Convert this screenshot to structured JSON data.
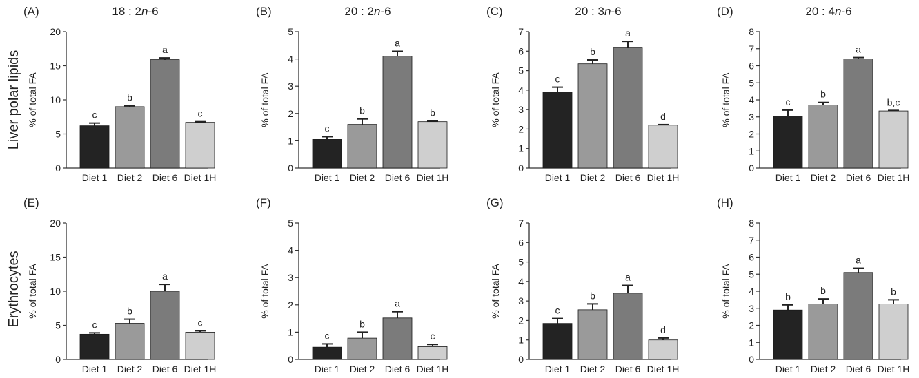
{
  "row_labels": [
    "Liver polar lipids",
    "Erythrocytes"
  ],
  "bar_colors": [
    "#232323",
    "#9a9a9a",
    "#7b7b7b",
    "#cfcfcf"
  ],
  "chart_data": [
    {
      "id": "A",
      "letter": "(A)",
      "title": "18 : 2n-6",
      "title_parts": [
        "18 : 2",
        {
          "i": "n"
        },
        "-6"
      ],
      "type": "bar",
      "ylabel": "% of total FA",
      "categories": [
        "Diet 1",
        "Diet 2",
        "Diet 6",
        "Diet 1H"
      ],
      "values": [
        6.2,
        9.0,
        15.9,
        6.7
      ],
      "errors": [
        0.4,
        0.15,
        0.25,
        0.1
      ],
      "sig": [
        "c",
        "b",
        "a",
        "c"
      ],
      "ylim": [
        0,
        20
      ],
      "ticks": [
        0,
        5,
        10,
        15,
        20
      ]
    },
    {
      "id": "B",
      "letter": "(B)",
      "title": "20 : 2n-6",
      "title_parts": [
        "20 : 2",
        {
          "i": "n"
        },
        "-6"
      ],
      "type": "bar",
      "ylabel": "% of total FA",
      "categories": [
        "Diet 1",
        "Diet 2",
        "Diet 6",
        "Diet 1H"
      ],
      "values": [
        1.05,
        1.6,
        4.1,
        1.7
      ],
      "errors": [
        0.1,
        0.2,
        0.18,
        0.03
      ],
      "sig": [
        "c",
        "b",
        "a",
        "b"
      ],
      "ylim": [
        0,
        5
      ],
      "ticks": [
        0,
        1,
        2,
        3,
        4,
        5
      ]
    },
    {
      "id": "C",
      "letter": "(C)",
      "title": "20 : 3n-6",
      "title_parts": [
        "20 : 3",
        {
          "i": "n"
        },
        "-6"
      ],
      "type": "bar",
      "ylabel": "% of total FA",
      "categories": [
        "Diet 1",
        "Diet 2",
        "Diet 6",
        "Diet 1H"
      ],
      "values": [
        3.9,
        5.35,
        6.2,
        2.2
      ],
      "errors": [
        0.25,
        0.2,
        0.3,
        0.03
      ],
      "sig": [
        "c",
        "b",
        "a",
        "d"
      ],
      "ylim": [
        0,
        7
      ],
      "ticks": [
        0,
        1,
        2,
        3,
        4,
        5,
        6,
        7
      ]
    },
    {
      "id": "D",
      "letter": "(D)",
      "title": "20 : 4n-6",
      "title_parts": [
        "20 : 4",
        {
          "i": "n"
        },
        "-6"
      ],
      "type": "bar",
      "ylabel": "% of total FA",
      "categories": [
        "Diet 1",
        "Diet 2",
        "Diet 6",
        "Diet 1H"
      ],
      "values": [
        3.05,
        3.7,
        6.4,
        3.35
      ],
      "errors": [
        0.35,
        0.15,
        0.08,
        0.03
      ],
      "sig": [
        "c",
        "b",
        "a",
        "b,c"
      ],
      "ylim": [
        0,
        8
      ],
      "ticks": [
        0,
        1,
        2,
        3,
        4,
        5,
        6,
        7,
        8
      ]
    },
    {
      "id": "E",
      "letter": "(E)",
      "title": "",
      "title_parts": [],
      "type": "bar",
      "ylabel": "% of total FA",
      "categories": [
        "Diet 1",
        "Diet 2",
        "Diet 6",
        "Diet 1H"
      ],
      "values": [
        3.7,
        5.3,
        10.0,
        4.0
      ],
      "errors": [
        0.2,
        0.6,
        1.0,
        0.2
      ],
      "sig": [
        "c",
        "b",
        "a",
        "c"
      ],
      "ylim": [
        0,
        20
      ],
      "ticks": [
        0,
        5,
        10,
        15,
        20
      ]
    },
    {
      "id": "F",
      "letter": "(F)",
      "title": "",
      "title_parts": [],
      "type": "bar",
      "ylabel": "% of total FA",
      "categories": [
        "Diet 1",
        "Diet 2",
        "Diet 6",
        "Diet 1H"
      ],
      "values": [
        0.45,
        0.78,
        1.52,
        0.47
      ],
      "errors": [
        0.12,
        0.22,
        0.23,
        0.08
      ],
      "sig": [
        "c",
        "b",
        "a",
        "c"
      ],
      "ylim": [
        0,
        5
      ],
      "ticks": [
        0,
        1,
        2,
        3,
        4,
        5
      ]
    },
    {
      "id": "G",
      "letter": "(G)",
      "title": "",
      "title_parts": [],
      "type": "bar",
      "ylabel": "% of total FA",
      "categories": [
        "Diet 1",
        "Diet 2",
        "Diet 6",
        "Diet 1H"
      ],
      "values": [
        1.85,
        2.55,
        3.4,
        1.0
      ],
      "errors": [
        0.25,
        0.3,
        0.4,
        0.1
      ],
      "sig": [
        "c",
        "b",
        "a",
        "d"
      ],
      "ylim": [
        0,
        7
      ],
      "ticks": [
        0,
        1,
        2,
        3,
        4,
        5,
        6,
        7
      ]
    },
    {
      "id": "H",
      "letter": "(H)",
      "title": "",
      "title_parts": [],
      "type": "bar",
      "ylabel": "% of total FA",
      "categories": [
        "Diet 1",
        "Diet 2",
        "Diet 6",
        "Diet 1H"
      ],
      "values": [
        2.9,
        3.25,
        5.1,
        3.25
      ],
      "errors": [
        0.3,
        0.3,
        0.25,
        0.25
      ],
      "sig": [
        "b",
        "b",
        "a",
        "b"
      ],
      "ylim": [
        0,
        8
      ],
      "ticks": [
        0,
        1,
        2,
        3,
        4,
        5,
        6,
        7,
        8
      ]
    }
  ]
}
